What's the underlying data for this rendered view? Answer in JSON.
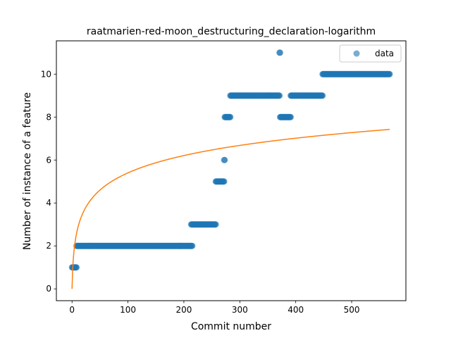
{
  "chart_data": {
    "type": "scatter",
    "title": "raatmarien-red-moon_destructuring_declaration-logarithm",
    "xlabel": "Commit number",
    "ylabel": "Number of instance of a feature",
    "xlim": [
      -28,
      597
    ],
    "ylim": [
      -0.55,
      11.55
    ],
    "xticks": [
      0,
      100,
      200,
      300,
      400,
      500
    ],
    "yticks": [
      0,
      2,
      4,
      6,
      8,
      10
    ],
    "grid": false,
    "legend": {
      "position": "top-right",
      "entries": [
        "data"
      ]
    },
    "colors": {
      "points": "#1f77b4",
      "fit": "#ff7f0e"
    },
    "series": [
      {
        "name": "data",
        "kind": "scatter",
        "segments": [
          {
            "x_start": 0,
            "x_end": 8,
            "y": 1
          },
          {
            "x_start": 8,
            "x_end": 215,
            "y": 2
          },
          {
            "x_start": 213,
            "x_end": 257,
            "y": 3
          },
          {
            "x_start": 257,
            "x_end": 272,
            "y": 5
          },
          {
            "x_start": 272,
            "x_end": 273,
            "y": 6
          },
          {
            "x_start": 273,
            "x_end": 283,
            "y": 8
          },
          {
            "x_start": 283,
            "x_end": 371,
            "y": 9
          },
          {
            "x_start": 371,
            "x_end": 372,
            "y": 11
          },
          {
            "x_start": 372,
            "x_end": 391,
            "y": 8
          },
          {
            "x_start": 391,
            "x_end": 448,
            "y": 9
          },
          {
            "x_start": 448,
            "x_end": 568,
            "y": 10
          }
        ]
      },
      {
        "name": "",
        "kind": "line",
        "model": "logarithm",
        "x_range": [
          0,
          568
        ],
        "coef_a": 1.1705,
        "coef_b": 0
      }
    ]
  }
}
